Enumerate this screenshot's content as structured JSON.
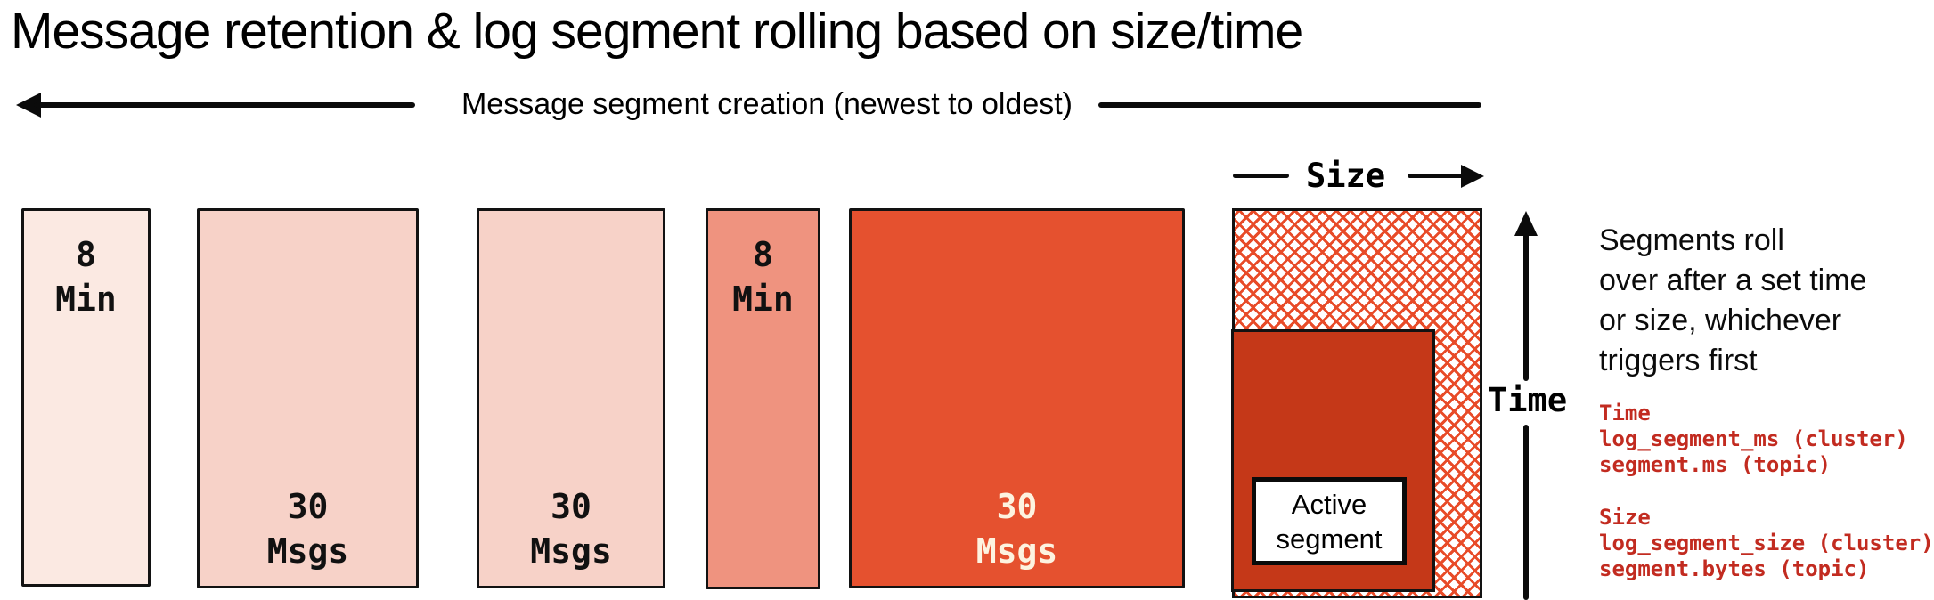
{
  "title": "Message retention & log segment rolling based on size/time",
  "creation_axis": {
    "label": "Message segment creation (newest to oldest)",
    "direction": "left-arrow"
  },
  "segments": [
    {
      "label": "8\nMin",
      "fill": "#fbe9e2",
      "text_color": "#111111"
    },
    {
      "label": "30\nMsgs",
      "fill": "#f7d2c8",
      "text_color": "#111111"
    },
    {
      "label": "30\nMsgs",
      "fill": "#f7d2c8",
      "text_color": "#111111"
    },
    {
      "label": "8\nMin",
      "fill": "#ef937f",
      "text_color": "#111111"
    },
    {
      "label": "30\nMsgs",
      "fill": "#e5512f",
      "text_color": "#fdf3e0"
    }
  ],
  "active_segment": {
    "label": "Active\nsegment",
    "container_fill": "#c53818",
    "hatch_color": "#e84b28"
  },
  "axes": {
    "size_label": "Size",
    "time_label": "Time"
  },
  "note": {
    "text": "Segments roll\nover after a set time\nor size, whichever\ntriggers first"
  },
  "config": {
    "text_color": "#c22b20",
    "time": {
      "heading": "Time",
      "lines": [
        "log_segment_ms (cluster)",
        "segment.ms (topic)"
      ]
    },
    "size": {
      "heading": "Size",
      "lines": [
        "log_segment_size (cluster)",
        "segment.bytes (topic)"
      ]
    }
  }
}
